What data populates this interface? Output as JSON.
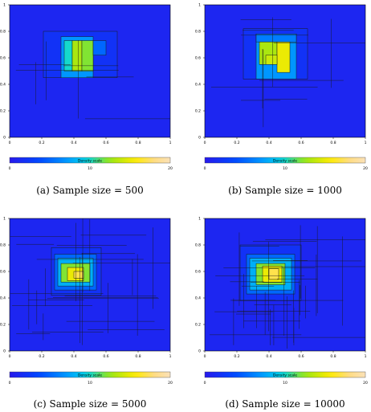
{
  "chart_data": [
    {
      "type": "heatmap",
      "caption": "(a) Sample size = 500",
      "xlim": [
        0,
        1
      ],
      "ylim": [
        0,
        1
      ],
      "x_ticks": [
        "0",
        "0.2",
        "0.4",
        "0.6",
        "0.8",
        "1"
      ],
      "y_ticks": [
        "0",
        "0.2",
        "0.4",
        "0.6",
        "0.8",
        "1"
      ],
      "scale": {
        "label": "Density scale",
        "ticks": [
          "0",
          "10",
          "20"
        ],
        "range": [
          0,
          20
        ]
      },
      "cells": [
        {
          "x0": 0,
          "x1": 1,
          "y0": 0,
          "y1": 1,
          "v": 1
        },
        {
          "x0": 0.21,
          "x1": 0.67,
          "y0": 0.45,
          "y1": 0.8,
          "v": 2
        },
        {
          "x0": 0.32,
          "x1": 0.52,
          "y0": 0.45,
          "y1": 0.76,
          "v": 7
        },
        {
          "x0": 0.34,
          "x1": 0.39,
          "y0": 0.5,
          "y1": 0.73,
          "v": 10
        },
        {
          "x0": 0.39,
          "x1": 0.45,
          "y0": 0.5,
          "y1": 0.73,
          "v": 13
        },
        {
          "x0": 0.45,
          "x1": 0.52,
          "y0": 0.5,
          "y1": 0.73,
          "v": 12
        },
        {
          "x0": 0.52,
          "x1": 0.6,
          "y0": 0.62,
          "y1": 0.73,
          "v": 5
        }
      ]
    },
    {
      "type": "heatmap",
      "caption": "(b) Sample size = 1000",
      "xlim": [
        0,
        1
      ],
      "ylim": [
        0,
        1
      ],
      "x_ticks": [
        "0",
        "0.2",
        "0.4",
        "0.6",
        "0.8",
        "1"
      ],
      "y_ticks": [
        "0",
        "0.2",
        "0.4",
        "0.6",
        "0.8",
        "1"
      ],
      "scale": {
        "label": "Density scale",
        "ticks": [
          "0",
          "10",
          "20"
        ],
        "range": [
          0,
          20
        ]
      },
      "cells": [
        {
          "x0": 0,
          "x1": 1,
          "y0": 0,
          "y1": 1,
          "v": 1
        },
        {
          "x0": 0.24,
          "x1": 0.64,
          "y0": 0.44,
          "y1": 0.82,
          "v": 2
        },
        {
          "x0": 0.32,
          "x1": 0.57,
          "y0": 0.44,
          "y1": 0.78,
          "v": 7
        },
        {
          "x0": 0.32,
          "x1": 0.57,
          "y0": 0.72,
          "y1": 0.78,
          "v": 6
        },
        {
          "x0": 0.34,
          "x1": 0.45,
          "y0": 0.55,
          "y1": 0.72,
          "v": 13
        },
        {
          "x0": 0.45,
          "x1": 0.53,
          "y0": 0.49,
          "y1": 0.72,
          "v": 15
        },
        {
          "x0": 0.38,
          "x1": 0.45,
          "y0": 0.55,
          "y1": 0.62,
          "v": 14
        }
      ]
    },
    {
      "type": "heatmap",
      "caption": "(c) Sample size = 5000",
      "xlim": [
        0,
        1
      ],
      "ylim": [
        0,
        1
      ],
      "x_ticks": [
        "0",
        "0.2",
        "0.4",
        "0.6",
        "0.8",
        "1"
      ],
      "y_ticks": [
        "0",
        "0.2",
        "0.4",
        "0.6",
        "0.8",
        "1"
      ],
      "scale": {
        "label": "Density scale",
        "ticks": [
          "0",
          "10",
          "20"
        ],
        "range": [
          0,
          20
        ]
      },
      "cells": [
        {
          "x0": 0,
          "x1": 1,
          "y0": 0,
          "y1": 1,
          "v": 1
        },
        {
          "x0": 0.26,
          "x1": 0.57,
          "y0": 0.42,
          "y1": 0.78,
          "v": 2
        },
        {
          "x0": 0.28,
          "x1": 0.54,
          "y0": 0.46,
          "y1": 0.73,
          "v": 5
        },
        {
          "x0": 0.3,
          "x1": 0.52,
          "y0": 0.49,
          "y1": 0.7,
          "v": 8
        },
        {
          "x0": 0.32,
          "x1": 0.5,
          "y0": 0.52,
          "y1": 0.66,
          "v": 12
        },
        {
          "x0": 0.36,
          "x1": 0.46,
          "y0": 0.53,
          "y1": 0.63,
          "v": 15
        },
        {
          "x0": 0.4,
          "x1": 0.46,
          "y0": 0.55,
          "y1": 0.6,
          "v": 17
        }
      ]
    },
    {
      "type": "heatmap",
      "caption": "(d) Sample size = 10000",
      "xlim": [
        0,
        1
      ],
      "ylim": [
        0,
        1
      ],
      "x_ticks": [
        "0",
        "0.2",
        "0.4",
        "0.6",
        "0.8",
        "1"
      ],
      "y_ticks": [
        "0",
        "0.2",
        "0.4",
        "0.6",
        "0.8",
        "1"
      ],
      "scale": {
        "label": "Density scale",
        "ticks": [
          "0",
          "10",
          "20"
        ],
        "range": [
          0,
          20
        ]
      },
      "cells": [
        {
          "x0": 0,
          "x1": 1,
          "y0": 0,
          "y1": 1,
          "v": 1
        },
        {
          "x0": 0.22,
          "x1": 0.6,
          "y0": 0.38,
          "y1": 0.8,
          "v": 2
        },
        {
          "x0": 0.26,
          "x1": 0.56,
          "y0": 0.43,
          "y1": 0.73,
          "v": 5
        },
        {
          "x0": 0.28,
          "x1": 0.54,
          "y0": 0.46,
          "y1": 0.7,
          "v": 8
        },
        {
          "x0": 0.32,
          "x1": 0.5,
          "y0": 0.5,
          "y1": 0.66,
          "v": 12
        },
        {
          "x0": 0.36,
          "x1": 0.48,
          "y0": 0.52,
          "y1": 0.64,
          "v": 15
        },
        {
          "x0": 0.4,
          "x1": 0.46,
          "y0": 0.54,
          "y1": 0.62,
          "v": 17
        }
      ]
    }
  ]
}
